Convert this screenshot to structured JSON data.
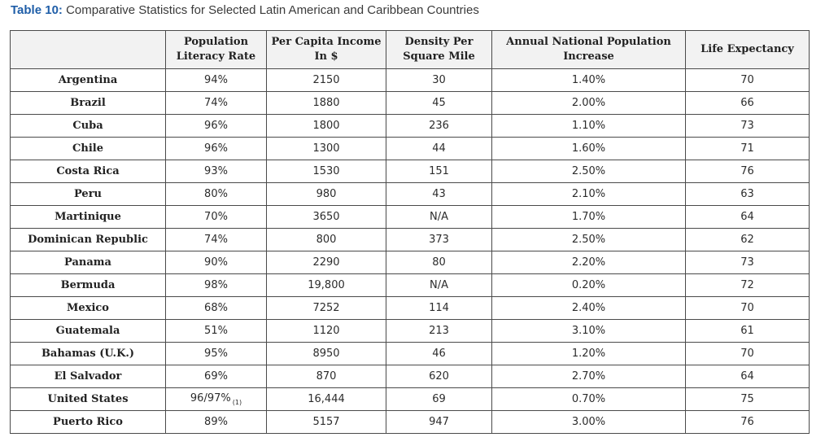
{
  "caption": {
    "label": "Table 10:",
    "text": "Comparative Statistics for Selected Latin American and Caribbean Countries"
  },
  "table": {
    "headers": [
      "",
      "Population\nLiteracy Rate",
      "Per Capita Income\nIn $",
      "Density Per\nSquare Mile",
      "Annual National Population\nIncrease",
      "Life Expectancy"
    ],
    "rows": [
      {
        "country": "Argentina",
        "literacy": "94%",
        "income": "2150",
        "density": "30",
        "increase": "1.40%",
        "life": "70"
      },
      {
        "country": "Brazil",
        "literacy": "74%",
        "income": "1880",
        "density": "45",
        "increase": "2.00%",
        "life": "66"
      },
      {
        "country": "Cuba",
        "literacy": "96%",
        "income": "1800",
        "density": "236",
        "increase": "1.10%",
        "life": "73"
      },
      {
        "country": "Chile",
        "literacy": "96%",
        "income": "1300",
        "density": "44",
        "increase": "1.60%",
        "life": "71"
      },
      {
        "country": "Costa Rica",
        "literacy": "93%",
        "income": "1530",
        "density": "151",
        "increase": "2.50%",
        "life": "76"
      },
      {
        "country": "Peru",
        "literacy": "80%",
        "income": "980",
        "density": "43",
        "increase": "2.10%",
        "life": "63"
      },
      {
        "country": "Martinique",
        "literacy": "70%",
        "income": "3650",
        "density": "N/A",
        "increase": "1.70%",
        "life": "64"
      },
      {
        "country": "Dominican Republic",
        "literacy": "74%",
        "income": "800",
        "density": "373",
        "increase": "2.50%",
        "life": "62"
      },
      {
        "country": "Panama",
        "literacy": "90%",
        "income": "2290",
        "density": "80",
        "increase": "2.20%",
        "life": "73"
      },
      {
        "country": "Bermuda",
        "literacy": "98%",
        "income": "19,800",
        "density": "N/A",
        "increase": "0.20%",
        "life": "72"
      },
      {
        "country": "Mexico",
        "literacy": "68%",
        "income": "7252",
        "density": "114",
        "increase": "2.40%",
        "life": "70"
      },
      {
        "country": "Guatemala",
        "literacy": "51%",
        "income": "1120",
        "density": "213",
        "increase": "3.10%",
        "life": "61"
      },
      {
        "country": "Bahamas (U.K.)",
        "literacy": "95%",
        "income": "8950",
        "density": "46",
        "increase": "1.20%",
        "life": "70"
      },
      {
        "country": "El Salvador",
        "literacy": "69%",
        "income": "870",
        "density": "620",
        "increase": "2.70%",
        "life": "64"
      },
      {
        "country": "United States",
        "literacy": "96/97%",
        "literacy_note": "(1)",
        "income": "16,444",
        "density": "69",
        "increase": "0.70%",
        "life": "75"
      },
      {
        "country": "Puerto Rico",
        "literacy": "89%",
        "income": "5157",
        "density": "947",
        "increase": "3.00%",
        "life": "76"
      }
    ]
  }
}
